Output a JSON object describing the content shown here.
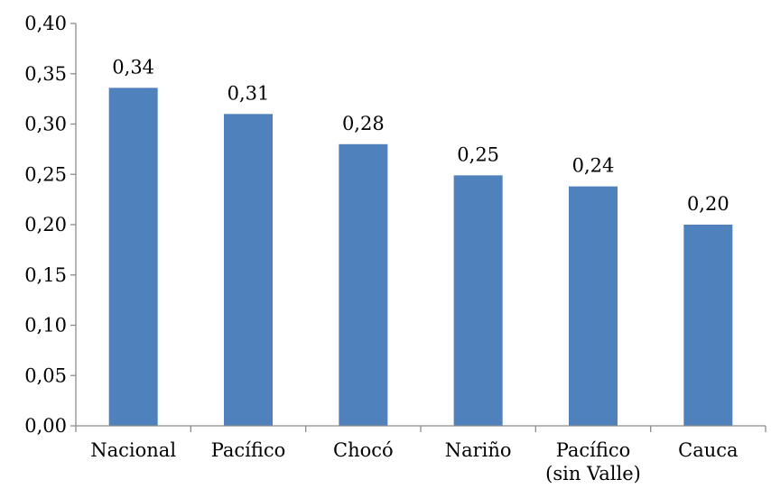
{
  "chart_data": {
    "type": "bar",
    "title": "",
    "xlabel": "",
    "ylabel": "",
    "categories": [
      [
        "Nacional"
      ],
      [
        "Pacífico"
      ],
      [
        "Chocó"
      ],
      [
        "Nariño"
      ],
      [
        "Pacífico",
        "(sin Valle)"
      ],
      [
        "Cauca"
      ]
    ],
    "values": [
      0.336,
      0.31,
      0.28,
      0.249,
      0.238,
      0.2
    ],
    "data_labels": [
      "0,34",
      "0,31",
      "0,28",
      "0,25",
      "0,24",
      "0,20"
    ],
    "ylim": [
      0,
      0.4
    ],
    "yticks": [
      0.0,
      0.05,
      0.1,
      0.15,
      0.2,
      0.25,
      0.3,
      0.35,
      0.4
    ],
    "ytick_labels": [
      "0,00",
      "0,05",
      "0,10",
      "0,15",
      "0,20",
      "0,25",
      "0,30",
      "0,35",
      "0,40"
    ],
    "bar_color": "#4f81bd",
    "grid": false,
    "legend": "none"
  }
}
